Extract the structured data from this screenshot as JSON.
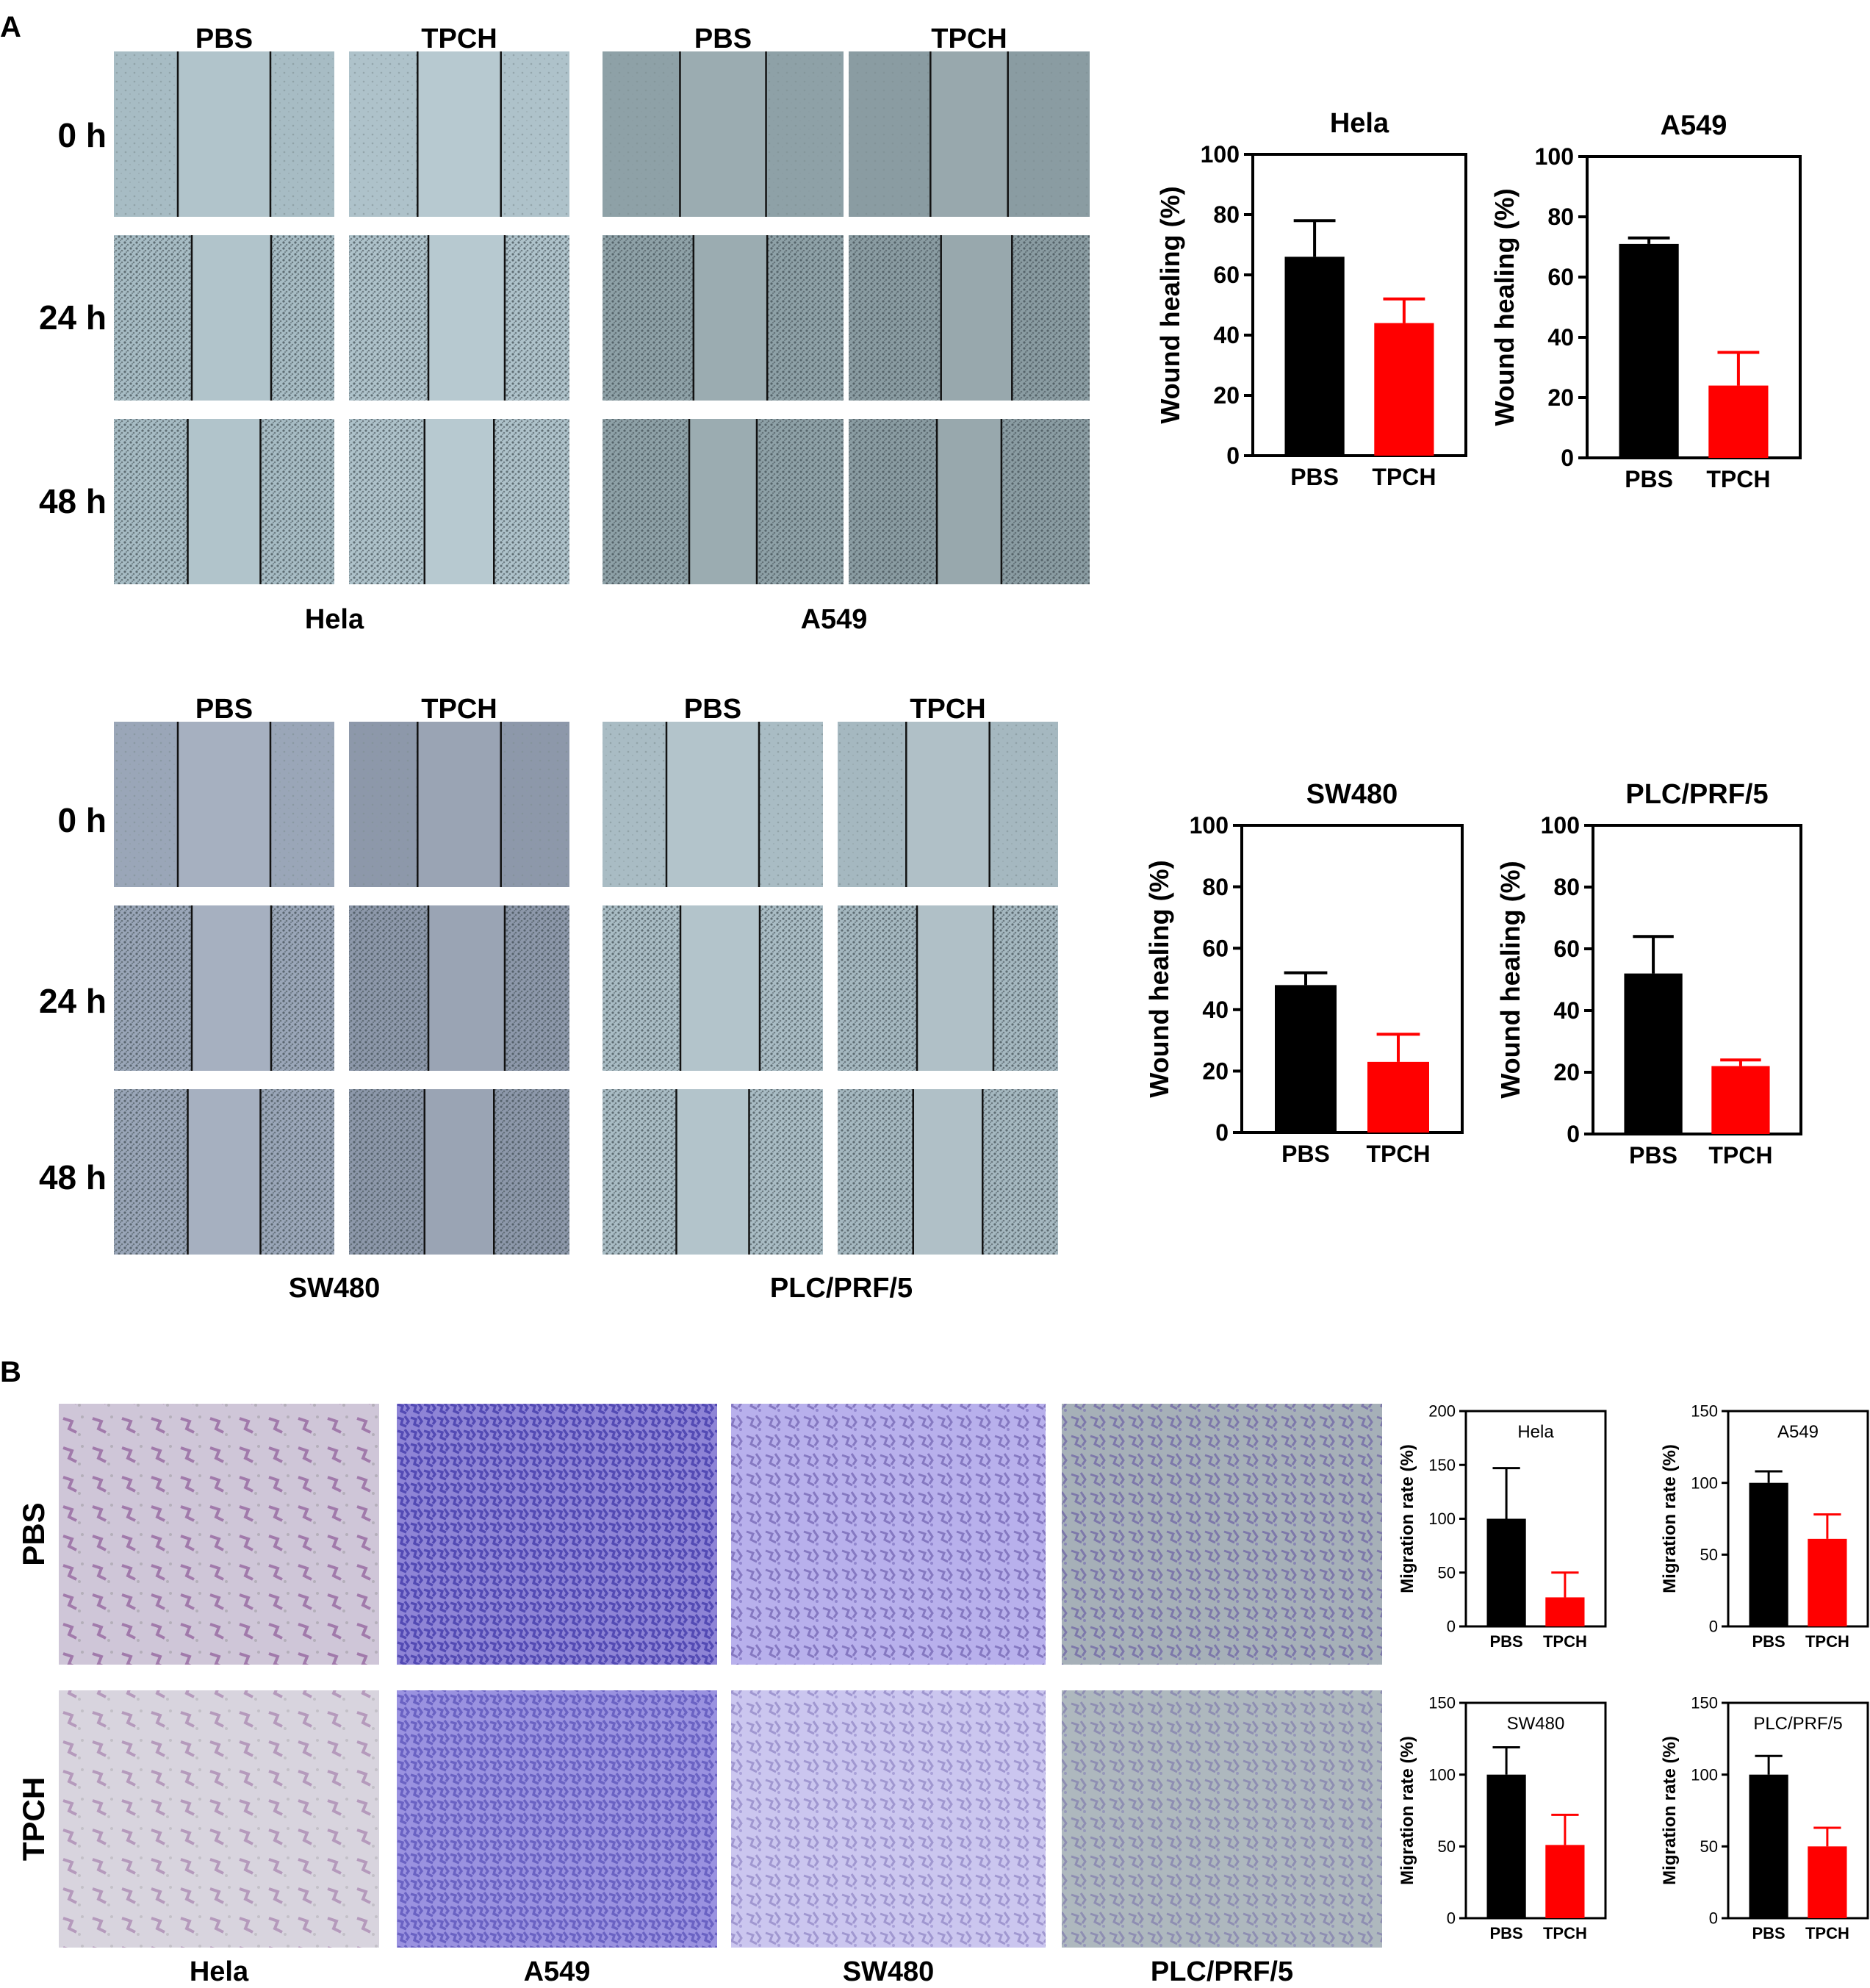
{
  "panel_labels": {
    "a": "A",
    "b": "B"
  },
  "wound_assay": {
    "treatments": [
      "PBS",
      "TPCH"
    ],
    "timepoints": [
      "0 h",
      "24 h",
      "48 h"
    ],
    "cell_lines_top": [
      "Hela",
      "A549"
    ],
    "cell_lines_bottom": [
      "SW480",
      "PLC/PRF/5"
    ]
  },
  "transwell_assay": {
    "row_labels": [
      "PBS",
      "TPCH"
    ],
    "cell_lines": [
      "Hela",
      "A549",
      "SW480",
      "PLC/PRF/5"
    ]
  },
  "colors": {
    "pbs_bar": "#000000",
    "tpch_bar": "#ff0000"
  },
  "chart_data": [
    {
      "type": "bar",
      "title": "Hela",
      "ylabel": "Wound healing (%)",
      "categories": [
        "PBS",
        "TPCH"
      ],
      "values": [
        66,
        44
      ],
      "errors": [
        12,
        8
      ],
      "ylim": [
        0,
        100
      ],
      "yticks": [
        0,
        20,
        40,
        60,
        80,
        100
      ]
    },
    {
      "type": "bar",
      "title": "A549",
      "ylabel": "Wound healing (%)",
      "categories": [
        "PBS",
        "TPCH"
      ],
      "values": [
        71,
        24
      ],
      "errors": [
        2,
        11
      ],
      "ylim": [
        0,
        100
      ],
      "yticks": [
        0,
        20,
        40,
        60,
        80,
        100
      ]
    },
    {
      "type": "bar",
      "title": "SW480",
      "ylabel": "Wound healing (%)",
      "categories": [
        "PBS",
        "TPCH"
      ],
      "values": [
        48,
        23
      ],
      "errors": [
        4,
        9
      ],
      "ylim": [
        0,
        100
      ],
      "yticks": [
        0,
        20,
        40,
        60,
        80,
        100
      ]
    },
    {
      "type": "bar",
      "title": "PLC/PRF/5",
      "ylabel": "Wound healing (%)",
      "categories": [
        "PBS",
        "TPCH"
      ],
      "values": [
        52,
        22
      ],
      "errors": [
        12,
        2
      ],
      "ylim": [
        0,
        100
      ],
      "yticks": [
        0,
        20,
        40,
        60,
        80,
        100
      ]
    },
    {
      "type": "bar",
      "title": "Hela",
      "ylabel": "Migration rate (%)",
      "categories": [
        "PBS",
        "TPCH"
      ],
      "values": [
        100,
        27
      ],
      "errors": [
        47,
        23
      ],
      "ylim": [
        0,
        200
      ],
      "yticks": [
        0,
        50,
        100,
        150,
        200
      ]
    },
    {
      "type": "bar",
      "title": "A549",
      "ylabel": "Migration rate (%)",
      "categories": [
        "PBS",
        "TPCH"
      ],
      "values": [
        100,
        61
      ],
      "errors": [
        8,
        17
      ],
      "ylim": [
        0,
        150
      ],
      "yticks": [
        0,
        50,
        100,
        150
      ]
    },
    {
      "type": "bar",
      "title": "SW480",
      "ylabel": "Migration rate (%)",
      "categories": [
        "PBS",
        "TPCH"
      ],
      "values": [
        100,
        51
      ],
      "errors": [
        19,
        21
      ],
      "ylim": [
        0,
        150
      ],
      "yticks": [
        0,
        50,
        100,
        150
      ]
    },
    {
      "type": "bar",
      "title": "PLC/PRF/5",
      "ylabel": "Migration rate (%)",
      "categories": [
        "PBS",
        "TPCH"
      ],
      "values": [
        100,
        50
      ],
      "errors": [
        13,
        13
      ],
      "ylim": [
        0,
        150
      ],
      "yticks": [
        0,
        50,
        100,
        150
      ]
    }
  ]
}
